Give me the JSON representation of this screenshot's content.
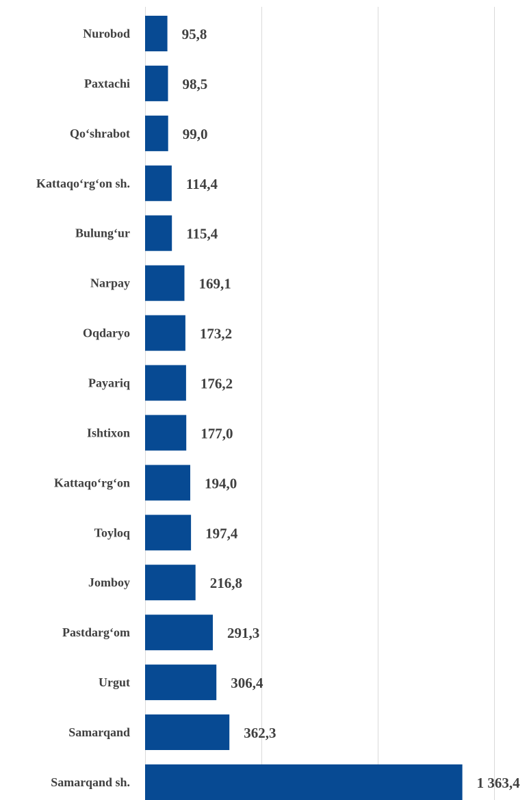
{
  "chart_data": {
    "type": "bar",
    "orientation": "horizontal",
    "categories": [
      "Nurobod",
      "Paxtachi",
      "Qo‘shrabot",
      "Kattaqo‘rg‘on sh.",
      "Bulung‘ur",
      "Narpay",
      "Oqdaryo",
      "Payariq",
      "Ishtixon",
      "Kattaqo‘rg‘on ",
      "Toyloq",
      "Jomboy",
      "Pastdarg‘om",
      "Urgut",
      "Samarqand ",
      "Samarqand sh."
    ],
    "values": [
      95.8,
      98.5,
      99.0,
      114.4,
      115.4,
      169.1,
      173.2,
      176.2,
      177.0,
      194.0,
      197.4,
      216.8,
      291.3,
      306.4,
      362.3,
      1363.4
    ],
    "value_labels": [
      "95,8",
      "98,5",
      "99,0",
      "114,4",
      "115,4",
      "169,1",
      "173,2",
      "176,2",
      "177,0",
      "194,0",
      "197,4",
      "216,8",
      "291,3",
      "306,4",
      "362,3",
      "1 363,4"
    ],
    "xlim": [
      0,
      2000
    ],
    "grid": true,
    "bar_color": "#074a93",
    "title": "",
    "xlabel": "",
    "ylabel": ""
  }
}
